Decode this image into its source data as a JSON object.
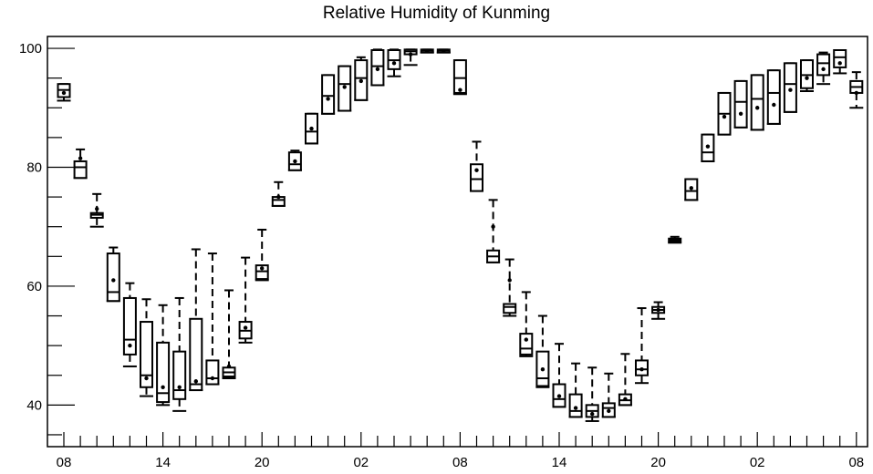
{
  "chart_data": {
    "type": "box",
    "title": "Relative Humidity of Kunming",
    "xlabel": "",
    "ylabel": "",
    "ylim": [
      33,
      102
    ],
    "yticks": [
      40,
      60,
      80,
      100
    ],
    "x_tick_labels": [
      "08",
      "14",
      "20",
      "02",
      "08",
      "14",
      "20",
      "02",
      "08"
    ],
    "x_tick_positions": [
      0,
      6,
      12,
      18,
      24,
      30,
      36,
      42,
      48
    ],
    "colors": {
      "axis": "#000000",
      "box": "#000000",
      "background": "#ffffff"
    },
    "series": [
      {
        "x": 0,
        "q1": 91.8,
        "median": 93.0,
        "q3": 94.0,
        "whisker_low": 91.2,
        "whisker_high": 94.0,
        "mean": 92.5
      },
      {
        "x": 1,
        "q1": 78.2,
        "median": 80.0,
        "q3": 81.0,
        "whisker_low": 78.2,
        "whisker_high": 83.0,
        "mean": 81.5
      },
      {
        "x": 2,
        "q1": 71.5,
        "median": 72.0,
        "q3": 72.3,
        "whisker_low": 70.0,
        "whisker_high": 75.5,
        "mean": 73.0
      },
      {
        "x": 3,
        "q1": 57.5,
        "median": 59.0,
        "q3": 65.5,
        "whisker_low": 57.5,
        "whisker_high": 66.5,
        "mean": 61.0
      },
      {
        "x": 4,
        "q1": 48.5,
        "median": 51.0,
        "q3": 58.0,
        "whisker_low": 46.5,
        "whisker_high": 60.5,
        "mean": 50.0
      },
      {
        "x": 5,
        "q1": 43.0,
        "median": 45.0,
        "q3": 54.0,
        "whisker_low": 41.5,
        "whisker_high": 57.8,
        "mean": 44.5
      },
      {
        "x": 6,
        "q1": 40.5,
        "median": 42.0,
        "q3": 50.5,
        "whisker_low": 40.0,
        "whisker_high": 56.8,
        "mean": 43.0
      },
      {
        "x": 7,
        "q1": 41.0,
        "median": 42.5,
        "q3": 49.0,
        "whisker_low": 39.0,
        "whisker_high": 58.0,
        "mean": 43.0
      },
      {
        "x": 8,
        "q1": 42.5,
        "median": 43.5,
        "q3": 54.5,
        "whisker_low": 42.5,
        "whisker_high": 66.2,
        "mean": 44.0
      },
      {
        "x": 9,
        "q1": 43.5,
        "median": 44.5,
        "q3": 47.5,
        "whisker_low": 43.5,
        "whisker_high": 65.5,
        "mean": 44.5
      },
      {
        "x": 10,
        "q1": 44.8,
        "median": 45.5,
        "q3": 46.3,
        "whisker_low": 44.5,
        "whisker_high": 59.3,
        "mean": 46.5
      },
      {
        "x": 11,
        "q1": 51.2,
        "median": 52.5,
        "q3": 54.0,
        "whisker_low": 50.5,
        "whisker_high": 64.8,
        "mean": 53.0
      },
      {
        "x": 12,
        "q1": 61.2,
        "median": 62.5,
        "q3": 63.5,
        "whisker_low": 61.0,
        "whisker_high": 69.5,
        "mean": 63.0
      },
      {
        "x": 13,
        "q1": 73.5,
        "median": 74.5,
        "q3": 75.0,
        "whisker_low": 73.5,
        "whisker_high": 77.5,
        "mean": 75.0
      },
      {
        "x": 14,
        "q1": 79.5,
        "median": 80.5,
        "q3": 82.5,
        "whisker_low": 79.5,
        "whisker_high": 82.8,
        "mean": 81.0
      },
      {
        "x": 15,
        "q1": 84.0,
        "median": 86.0,
        "q3": 89.0,
        "whisker_low": 84.0,
        "whisker_high": 89.0,
        "mean": 86.5
      },
      {
        "x": 16,
        "q1": 89.0,
        "median": 92.0,
        "q3": 95.5,
        "whisker_low": 89.0,
        "whisker_high": 95.5,
        "mean": 91.5
      },
      {
        "x": 17,
        "q1": 89.5,
        "median": 94.0,
        "q3": 97.0,
        "whisker_low": 89.5,
        "whisker_high": 97.0,
        "mean": 93.5
      },
      {
        "x": 18,
        "q1": 91.3,
        "median": 95.0,
        "q3": 98.0,
        "whisker_low": 91.3,
        "whisker_high": 98.5,
        "mean": 94.5
      },
      {
        "x": 19,
        "q1": 93.8,
        "median": 97.0,
        "q3": 99.7,
        "whisker_low": 93.8,
        "whisker_high": 99.8,
        "mean": 96.5
      },
      {
        "x": 20,
        "q1": 96.5,
        "median": 98.0,
        "q3": 99.7,
        "whisker_low": 95.3,
        "whisker_high": 99.8,
        "mean": 97.5
      },
      {
        "x": 21,
        "q1": 99.0,
        "median": 99.5,
        "q3": 99.8,
        "whisker_low": 97.2,
        "whisker_high": 99.8,
        "mean": 99.0
      },
      {
        "x": 22,
        "q1": 99.3,
        "median": 99.6,
        "q3": 99.8,
        "whisker_low": 99.3,
        "whisker_high": 99.8,
        "mean": 99.5
      },
      {
        "x": 23,
        "q1": 99.3,
        "median": 99.6,
        "q3": 99.8,
        "whisker_low": 99.3,
        "whisker_high": 99.8,
        "mean": 99.5
      },
      {
        "x": 24,
        "q1": 92.5,
        "median": 95.0,
        "q3": 98.0,
        "whisker_low": 92.3,
        "whisker_high": 98.0,
        "mean": 93.0
      },
      {
        "x": 25,
        "q1": 76.0,
        "median": 78.0,
        "q3": 80.5,
        "whisker_low": 76.0,
        "whisker_high": 84.3,
        "mean": 79.5
      },
      {
        "x": 26,
        "q1": 64.0,
        "median": 65.0,
        "q3": 66.0,
        "whisker_low": 64.0,
        "whisker_high": 74.5,
        "mean": 70.0
      },
      {
        "x": 27,
        "q1": 55.5,
        "median": 56.5,
        "q3": 57.0,
        "whisker_low": 55.0,
        "whisker_high": 64.5,
        "mean": 61.0
      },
      {
        "x": 28,
        "q1": 48.5,
        "median": 49.5,
        "q3": 52.0,
        "whisker_low": 48.2,
        "whisker_high": 59.0,
        "mean": 51.0
      },
      {
        "x": 29,
        "q1": 43.2,
        "median": 44.5,
        "q3": 49.0,
        "whisker_low": 43.0,
        "whisker_high": 55.0,
        "mean": 46.0
      },
      {
        "x": 30,
        "q1": 39.7,
        "median": 41.0,
        "q3": 43.5,
        "whisker_low": 39.7,
        "whisker_high": 50.3,
        "mean": 41.5
      },
      {
        "x": 31,
        "q1": 38.0,
        "median": 39.0,
        "q3": 41.8,
        "whisker_low": 38.0,
        "whisker_high": 47.0,
        "mean": 39.5
      },
      {
        "x": 32,
        "q1": 38.0,
        "median": 39.0,
        "q3": 40.0,
        "whisker_low": 37.3,
        "whisker_high": 46.3,
        "mean": 38.5
      },
      {
        "x": 33,
        "q1": 38.0,
        "median": 39.5,
        "q3": 40.3,
        "whisker_low": 38.0,
        "whisker_high": 45.3,
        "mean": 39.0
      },
      {
        "x": 34,
        "q1": 40.0,
        "median": 40.8,
        "q3": 41.8,
        "whisker_low": 40.0,
        "whisker_high": 48.6,
        "mean": 41.0
      },
      {
        "x": 35,
        "q1": 45.0,
        "median": 46.0,
        "q3": 47.5,
        "whisker_low": 43.7,
        "whisker_high": 56.3,
        "mean": 46.0
      },
      {
        "x": 36,
        "q1": 55.5,
        "median": 56.0,
        "q3": 56.5,
        "whisker_low": 54.5,
        "whisker_high": 57.3,
        "mean": 56.0
      },
      {
        "x": 37,
        "q1": 67.5,
        "median": 67.8,
        "q3": 68.0,
        "whisker_low": 67.3,
        "whisker_high": 68.3,
        "mean": 67.8
      },
      {
        "x": 38,
        "q1": 74.5,
        "median": 76.0,
        "q3": 78.0,
        "whisker_low": 74.5,
        "whisker_high": 78.0,
        "mean": 76.5
      },
      {
        "x": 39,
        "q1": 81.0,
        "median": 82.5,
        "q3": 85.5,
        "whisker_low": 81.0,
        "whisker_high": 85.5,
        "mean": 83.5
      },
      {
        "x": 40,
        "q1": 85.5,
        "median": 89.0,
        "q3": 92.5,
        "whisker_low": 85.5,
        "whisker_high": 92.5,
        "mean": 88.5
      },
      {
        "x": 41,
        "q1": 86.7,
        "median": 91.0,
        "q3": 94.5,
        "whisker_low": 86.7,
        "whisker_high": 94.5,
        "mean": 89.0
      },
      {
        "x": 42,
        "q1": 86.3,
        "median": 91.5,
        "q3": 95.5,
        "whisker_low": 86.3,
        "whisker_high": 95.5,
        "mean": 90.0
      },
      {
        "x": 43,
        "q1": 87.3,
        "median": 92.5,
        "q3": 96.3,
        "whisker_low": 87.3,
        "whisker_high": 96.3,
        "mean": 90.5
      },
      {
        "x": 44,
        "q1": 89.3,
        "median": 94.0,
        "q3": 97.5,
        "whisker_low": 89.3,
        "whisker_high": 97.5,
        "mean": 93.0
      },
      {
        "x": 45,
        "q1": 93.3,
        "median": 95.5,
        "q3": 98.0,
        "whisker_low": 92.8,
        "whisker_high": 98.0,
        "mean": 95.0
      },
      {
        "x": 46,
        "q1": 95.5,
        "median": 97.5,
        "q3": 99.0,
        "whisker_low": 94.0,
        "whisker_high": 99.3,
        "mean": 96.5
      },
      {
        "x": 47,
        "q1": 96.8,
        "median": 98.5,
        "q3": 99.7,
        "whisker_low": 95.8,
        "whisker_high": 99.7,
        "mean": 97.5
      },
      {
        "x": 48,
        "q1": 92.5,
        "median": 93.5,
        "q3": 94.5,
        "whisker_low": 90.0,
        "whisker_high": 96.0,
        "mean": 92.5
      }
    ]
  }
}
